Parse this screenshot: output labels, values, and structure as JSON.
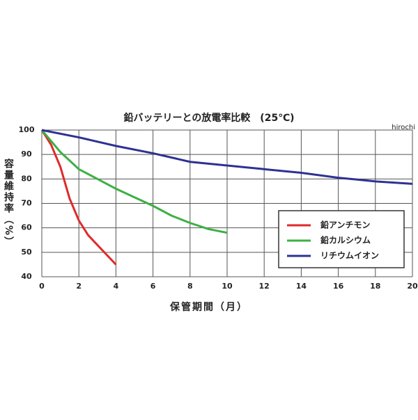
{
  "chart_data": {
    "type": "line",
    "title": "鉛バッテリーとの放電率比較　(25℃)",
    "watermark": "hirochi",
    "x_label": "保管期間（月）",
    "y_label": "容量維持率（%）",
    "xlim": [
      0,
      20
    ],
    "xticks": [
      0,
      2,
      4,
      6,
      8,
      10,
      12,
      14,
      16,
      18,
      20
    ],
    "ylim": [
      40,
      100
    ],
    "yticks": [
      40,
      50,
      60,
      70,
      80,
      90,
      100
    ],
    "grid": true,
    "series": [
      {
        "name": "鉛アンチモン",
        "color": "#e02a2a",
        "x": [
          0,
          0.5,
          1,
          1.5,
          2,
          2.5,
          3,
          3.5,
          4
        ],
        "values": [
          100,
          94,
          85,
          72,
          63,
          57,
          53,
          49,
          45
        ]
      },
      {
        "name": "鉛カルシウム",
        "color": "#3cb043",
        "x": [
          0,
          1,
          2,
          3,
          4,
          5,
          6,
          7,
          8,
          9,
          10
        ],
        "values": [
          100,
          91,
          84,
          80,
          76,
          72.5,
          69,
          65,
          62,
          59.5,
          58
        ]
      },
      {
        "name": "リチウムイオン",
        "color": "#2e3192",
        "x": [
          0,
          2,
          4,
          6,
          8,
          10,
          12,
          14,
          16,
          18,
          20
        ],
        "values": [
          100,
          97,
          93.5,
          90.5,
          87,
          85.5,
          84,
          82.5,
          80.5,
          79,
          78
        ]
      }
    ]
  }
}
